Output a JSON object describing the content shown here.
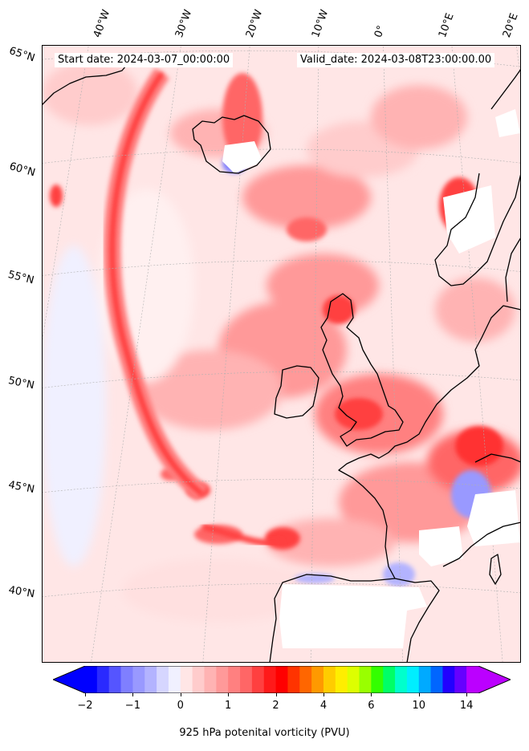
{
  "header": {
    "start_date": "Start date: 2024-03-07_00:00:00",
    "valid_date": "Valid_date: 2024-03-08T23:00:00.00"
  },
  "lat_labels": [
    "65°N",
    "60°N",
    "55°N",
    "50°N",
    "45°N",
    "40°N"
  ],
  "lon_labels": [
    "40°W",
    "30°W",
    "20°W",
    "10°W",
    "0°",
    "10°E",
    "20°E"
  ],
  "colorbar": {
    "title": "925 hPa potenital vorticity (PVU)",
    "tick_labels": [
      "−2",
      "−1",
      "0",
      "1",
      "2",
      "4",
      "6",
      "10",
      "14"
    ],
    "colors": [
      "#0000ff",
      "#2a2aff",
      "#5555ff",
      "#7f7fff",
      "#9999ff",
      "#b3b3ff",
      "#d6d6ff",
      "#f0f0ff",
      "#ffe6e6",
      "#ffcccc",
      "#ffb3b3",
      "#ff9999",
      "#ff8080",
      "#ff6666",
      "#ff4040",
      "#ff1a1a",
      "#ff0000",
      "#ff3300",
      "#ff6600",
      "#ff9900",
      "#ffcc00",
      "#ffee00",
      "#ddff00",
      "#99ff00",
      "#33ff00",
      "#00ff66",
      "#00ffcc",
      "#00eeff",
      "#00aaff",
      "#0066ff",
      "#2200ff",
      "#6600ff",
      "#bb00ff"
    ],
    "under_color": "#0000ff",
    "over_color": "#bb00ff"
  },
  "map": {
    "field_base_color": "#ffe6e6",
    "land_mask_color": "#ffffff",
    "coastline_color": "#000000",
    "gridline_color": "#b0b0b0"
  }
}
